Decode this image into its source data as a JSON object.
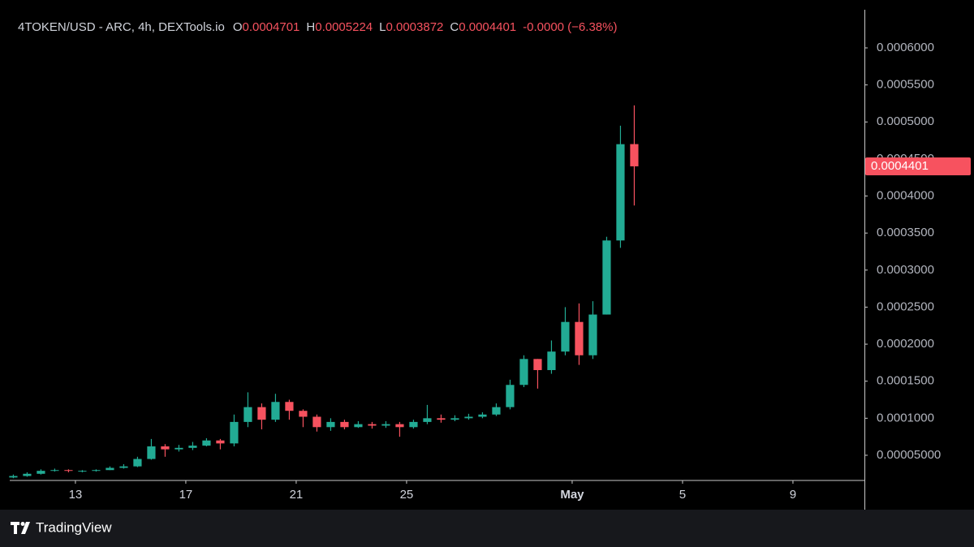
{
  "chart_data": {
    "type": "candlestick",
    "title": "4TOKEN/USD - ARC, 4h, DEXTools.io",
    "legend": {
      "open_label": "O",
      "open": "0.0004701",
      "high_label": "H",
      "high": "0.0005224",
      "low_label": "L",
      "low": "0.0003872",
      "close_label": "C",
      "close": "0.0004401",
      "change": "-0.0000 (−6.38%)"
    },
    "price_tag": "0.0004401",
    "brand": "TradingView",
    "up_color": "#22ab94",
    "down_color": "#f7525f",
    "x": [
      10.75,
      11.25,
      11.75,
      12.25,
      12.75,
      13.25,
      13.75,
      14.25,
      14.75,
      15.25,
      15.75,
      16.25,
      16.75,
      17.25,
      17.75,
      18.25,
      18.75,
      19.25,
      19.75,
      20.25,
      20.75,
      21.25,
      21.75,
      22.25,
      22.75,
      23.25,
      23.75,
      24.25,
      24.75,
      25.25,
      25.75,
      26.25,
      26.75,
      27.25,
      27.75,
      28.25,
      28.75,
      29.25,
      29.75,
      30.25,
      30.75,
      31.25,
      31.75,
      32.25,
      32.75,
      33.25
    ],
    "open": [
      2e-05,
      2.2e-05,
      2.5e-05,
      2.9e-05,
      3e-05,
      2.9e-05,
      2.9e-05,
      3e-05,
      3.3e-05,
      3.5e-05,
      4.5e-05,
      6.2e-05,
      5.8e-05,
      6e-05,
      6.3e-05,
      7e-05,
      6.6e-05,
      9.5e-05,
      0.000115,
      9.8e-05,
      0.000122,
      0.00011,
      0.000102,
      8.8e-05,
      9.5e-05,
      8.8e-05,
      9.2e-05,
      9e-05,
      9.2e-05,
      8.8e-05,
      9.5e-05,
      0.0001,
      9.8e-05,
      0.0001,
      0.000102,
      0.000105,
      0.000115,
      0.000145,
      0.00018,
      0.000165,
      0.00019,
      0.00023,
      0.000185,
      0.00024,
      0.00034,
      0.0004701
    ],
    "high": [
      2.4e-05,
      2.7e-05,
      3.1e-05,
      3.2e-05,
      3.1e-05,
      3e-05,
      3.1e-05,
      3.5e-05,
      3.8e-05,
      4.8e-05,
      7.2e-05,
      6.5e-05,
      6.4e-05,
      6.8e-05,
      7.3e-05,
      7.2e-05,
      0.000105,
      0.000135,
      0.00012,
      0.000133,
      0.000125,
      0.000112,
      0.000105,
      0.0001,
      9.8e-05,
      9.6e-05,
      9.5e-05,
      9.6e-05,
      9.5e-05,
      9.8e-05,
      0.000118,
      0.000105,
      0.000104,
      0.000106,
      0.000108,
      0.00012,
      0.000152,
      0.000185,
      0.00018,
      0.000205,
      0.00025,
      0.000255,
      0.000258,
      0.000345,
      0.000495,
      0.0005224
    ],
    "low": [
      1.9e-05,
      2.1e-05,
      2.4e-05,
      2.8e-05,
      2.7e-05,
      2.7e-05,
      2.8e-05,
      3e-05,
      3.2e-05,
      3.4e-05,
      4.4e-05,
      4.8e-05,
      5.5e-05,
      5.7e-05,
      6.2e-05,
      5.8e-05,
      6.2e-05,
      8.8e-05,
      8.5e-05,
      9.5e-05,
      9.8e-05,
      8.8e-05,
      8.2e-05,
      8.3e-05,
      8.5e-05,
      8.7e-05,
      8.6e-05,
      8.7e-05,
      7.5e-05,
      8.6e-05,
      9.2e-05,
      9.4e-05,
      9.6e-05,
      9.8e-05,
      0.0001,
      0.000103,
      0.000112,
      0.000142,
      0.00014,
      0.00016,
      0.000185,
      0.000172,
      0.00018,
      0.00024,
      0.00033,
      0.0003872
    ],
    "close": [
      2.2e-05,
      2.5e-05,
      2.9e-05,
      3e-05,
      2.9e-05,
      2.9e-05,
      3e-05,
      3.3e-05,
      3.5e-05,
      4.5e-05,
      6.2e-05,
      5.8e-05,
      6e-05,
      6.3e-05,
      7e-05,
      6.6e-05,
      9.5e-05,
      0.000115,
      9.8e-05,
      0.000122,
      0.00011,
      0.000102,
      8.8e-05,
      9.5e-05,
      8.8e-05,
      9.2e-05,
      9e-05,
      9.2e-05,
      8.8e-05,
      9.5e-05,
      0.0001,
      9.8e-05,
      0.0001,
      0.000102,
      0.000105,
      0.000115,
      0.000145,
      0.00018,
      0.000165,
      0.00019,
      0.00023,
      0.000185,
      0.00024,
      0.00034,
      0.00047,
      0.0004401
    ],
    "xlim": [
      10.62,
      41.59
    ],
    "xticks": [
      13,
      17,
      21,
      25,
      {
        "value": 31,
        "label": "May"
      },
      {
        "value": 35,
        "label": "5"
      },
      {
        "value": 39,
        "label": "9"
      }
    ],
    "ylim": [
      1.6e-05,
      0.0006515
    ],
    "yticks": [
      {
        "value": 5e-05,
        "label": "0.00005000"
      },
      {
        "value": 0.0001,
        "label": "0.0001000"
      },
      {
        "value": 0.00015,
        "label": "0.0001500"
      },
      {
        "value": 0.0002,
        "label": "0.0002000"
      },
      {
        "value": 0.00025,
        "label": "0.0002500"
      },
      {
        "value": 0.0003,
        "label": "0.0003000"
      },
      {
        "value": 0.00035,
        "label": "0.0003500"
      },
      {
        "value": 0.0004,
        "label": "0.0004000"
      },
      {
        "value": 0.00045,
        "label": "0.0004500"
      },
      {
        "value": 0.0005,
        "label": "0.0005000"
      },
      {
        "value": 0.00055,
        "label": "0.0005500"
      },
      {
        "value": 0.0006,
        "label": "0.0006000"
      }
    ]
  }
}
